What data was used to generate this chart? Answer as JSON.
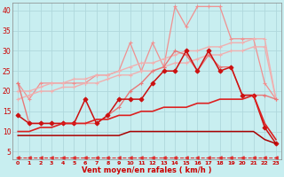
{
  "xlabel": "Vent moyen/en rafales ( km/h )",
  "bg_color": "#c8eef0",
  "grid_color": "#b0d8dc",
  "xlim": [
    -0.5,
    23.5
  ],
  "ylim": [
    3,
    42
  ],
  "x": [
    0,
    1,
    2,
    3,
    4,
    5,
    6,
    7,
    8,
    9,
    10,
    11,
    12,
    13,
    14,
    15,
    16,
    17,
    18,
    19,
    20,
    21,
    22,
    23
  ],
  "series": [
    {
      "name": "spiky_top_light_pink",
      "color": "#f09090",
      "linewidth": 0.9,
      "marker": "+",
      "markersize": 3.5,
      "linestyle": "-",
      "y": [
        22,
        18,
        22,
        22,
        22,
        22,
        22,
        24,
        24,
        25,
        32,
        25,
        32,
        26,
        41,
        36,
        41,
        41,
        41,
        33,
        33,
        33,
        22,
        18
      ]
    },
    {
      "name": "upper_trend_light_pink",
      "color": "#f0b0b0",
      "linewidth": 1.0,
      "marker": "+",
      "markersize": 3,
      "linestyle": "-",
      "y": [
        20,
        20,
        21,
        22,
        22,
        23,
        23,
        24,
        24,
        25,
        26,
        27,
        27,
        28,
        29,
        30,
        30,
        31,
        31,
        32,
        32,
        33,
        33,
        18
      ]
    },
    {
      "name": "lower_trend_light_pink",
      "color": "#f0b0b0",
      "linewidth": 1.0,
      "marker": "+",
      "markersize": 3,
      "linestyle": "-",
      "y": [
        18,
        19,
        20,
        20,
        21,
        21,
        22,
        22,
        23,
        24,
        24,
        25,
        25,
        26,
        27,
        27,
        28,
        29,
        29,
        30,
        30,
        31,
        31,
        18
      ]
    },
    {
      "name": "medium_pink_wavy",
      "color": "#e87878",
      "linewidth": 1.0,
      "marker": "+",
      "markersize": 3.5,
      "linestyle": "-",
      "y": [
        22,
        12,
        12,
        12,
        12,
        12,
        12,
        12,
        14,
        16,
        20,
        22,
        25,
        26,
        30,
        29,
        25,
        29,
        26,
        26,
        19,
        19,
        19,
        18
      ]
    },
    {
      "name": "dark_red_spiky",
      "color": "#cc1010",
      "linewidth": 1.1,
      "marker": "D",
      "markersize": 2.5,
      "linestyle": "-",
      "y": [
        14,
        12,
        12,
        12,
        12,
        12,
        18,
        12,
        14,
        18,
        18,
        18,
        22,
        25,
        25,
        30,
        25,
        30,
        25,
        26,
        19,
        19,
        11,
        7
      ]
    },
    {
      "name": "dark_red_smooth_upper",
      "color": "#dd2020",
      "linewidth": 1.2,
      "marker": null,
      "markersize": 0,
      "linestyle": "-",
      "y": [
        10,
        10,
        11,
        11,
        12,
        12,
        12,
        13,
        13,
        14,
        14,
        15,
        15,
        16,
        16,
        16,
        17,
        17,
        18,
        18,
        18,
        19,
        12,
        8
      ]
    },
    {
      "name": "dark_red_smooth_lower",
      "color": "#aa0000",
      "linewidth": 1.1,
      "marker": null,
      "markersize": 0,
      "linestyle": "-",
      "y": [
        9,
        9,
        9,
        9,
        9,
        9,
        9,
        9,
        9,
        9,
        10,
        10,
        10,
        10,
        10,
        10,
        10,
        10,
        10,
        10,
        10,
        10,
        8,
        7
      ]
    },
    {
      "name": "dashed_bottom",
      "color": "#dd3030",
      "linewidth": 0.8,
      "marker": "<",
      "markersize": 2.5,
      "linestyle": "--",
      "y": [
        3.5,
        3.5,
        3.5,
        3.5,
        3.5,
        3.5,
        3.5,
        3.5,
        3.5,
        3.5,
        3.5,
        3.5,
        3.5,
        3.5,
        3.5,
        3.5,
        3.5,
        3.5,
        3.5,
        3.5,
        3.5,
        3.5,
        3.5,
        3.5
      ]
    }
  ],
  "yticks": [
    5,
    10,
    15,
    20,
    25,
    30,
    35,
    40
  ],
  "xticks": [
    0,
    1,
    2,
    3,
    4,
    5,
    6,
    7,
    8,
    9,
    10,
    11,
    12,
    13,
    14,
    15,
    16,
    17,
    18,
    19,
    20,
    21,
    22,
    23
  ]
}
